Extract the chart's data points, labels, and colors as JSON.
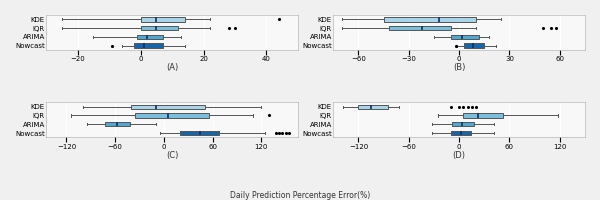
{
  "subplots": [
    {
      "label": "(A)",
      "xlim": [
        -30,
        50
      ],
      "xticks": [
        -20,
        0,
        20,
        40
      ],
      "models": [
        "KDE",
        "IQR",
        "ARIMA",
        "Nowcast"
      ],
      "colors": [
        "#aad4e8",
        "#7abfdc",
        "#4fa8d0",
        "#1565a8"
      ],
      "boxes": [
        {
          "q1": 0,
          "med": 5,
          "q3": 14,
          "whislo": -25,
          "whishi": 22,
          "fliers": [
            44
          ]
        },
        {
          "q1": 0,
          "med": 5,
          "q3": 12,
          "whislo": -25,
          "whishi": 22,
          "fliers": [
            28,
            30
          ]
        },
        {
          "q1": -1,
          "med": 2,
          "q3": 7,
          "whislo": -15,
          "whishi": 13,
          "fliers": []
        },
        {
          "q1": -2,
          "med": 1,
          "q3": 7,
          "whislo": -6,
          "whishi": 14,
          "fliers": [
            -9
          ]
        }
      ]
    },
    {
      "label": "(B)",
      "xlim": [
        -75,
        75
      ],
      "xticks": [
        -60,
        -30,
        0,
        30,
        60
      ],
      "models": [
        "KDE",
        "IQR",
        "ARIMA",
        "Nowcast"
      ],
      "colors": [
        "#aad4e8",
        "#7abfdc",
        "#4fa8d0",
        "#1565a8"
      ],
      "boxes": [
        {
          "q1": -45,
          "med": -12,
          "q3": 10,
          "whislo": -70,
          "whishi": 25,
          "fliers": []
        },
        {
          "q1": -42,
          "med": -22,
          "q3": -5,
          "whislo": -70,
          "whishi": 10,
          "fliers": [
            50,
            55,
            58
          ]
        },
        {
          "q1": -5,
          "med": 2,
          "q3": 12,
          "whislo": -15,
          "whishi": 18,
          "fliers": []
        },
        {
          "q1": 3,
          "med": 8,
          "q3": 15,
          "whislo": -1,
          "whishi": 22,
          "fliers": [
            -2
          ]
        }
      ]
    },
    {
      "label": "(C)",
      "xlim": [
        -145,
        165
      ],
      "xticks": [
        -120,
        -60,
        0,
        60,
        120
      ],
      "models": [
        "KDE",
        "IQR",
        "ARIMA",
        "Nowcast"
      ],
      "colors": [
        "#aad4e8",
        "#7abfdc",
        "#4fa8d0",
        "#1565a8"
      ],
      "boxes": [
        {
          "q1": -40,
          "med": -10,
          "q3": 50,
          "whislo": -100,
          "whishi": 120,
          "fliers": []
        },
        {
          "q1": -35,
          "med": 5,
          "q3": 55,
          "whislo": -115,
          "whishi": 110,
          "fliers": [
            130
          ]
        },
        {
          "q1": -72,
          "med": -58,
          "q3": -42,
          "whislo": -95,
          "whishi": -10,
          "fliers": []
        },
        {
          "q1": 20,
          "med": 45,
          "q3": 68,
          "whislo": -5,
          "whishi": 125,
          "fliers": [
            138,
            142,
            146,
            150,
            154
          ]
        }
      ]
    },
    {
      "label": "(D)",
      "xlim": [
        -150,
        150
      ],
      "xticks": [
        -120,
        -60,
        0,
        60,
        120
      ],
      "models": [
        "KDE",
        "IQR",
        "ARIMA",
        "Nowcast"
      ],
      "colors": [
        "#aad4e8",
        "#7abfdc",
        "#4fa8d0",
        "#1565a8"
      ],
      "boxes": [
        {
          "q1": -120,
          "med": -105,
          "q3": -85,
          "whislo": -138,
          "whishi": -72,
          "fliers": [
            -10,
            0,
            5,
            10,
            15,
            20
          ]
        },
        {
          "q1": 5,
          "med": 22,
          "q3": 52,
          "whislo": -25,
          "whishi": 118,
          "fliers": []
        },
        {
          "q1": -8,
          "med": 3,
          "q3": 18,
          "whislo": -32,
          "whishi": 42,
          "fliers": []
        },
        {
          "q1": -10,
          "med": 2,
          "q3": 14,
          "whislo": -32,
          "whishi": 42,
          "fliers": []
        }
      ]
    }
  ],
  "xlabel": "Daily Prediction Percentage Error(%)",
  "background_color": "#f0f0f0",
  "box_bg_color": "#f8f8f8",
  "grid_color": "#ffffff"
}
